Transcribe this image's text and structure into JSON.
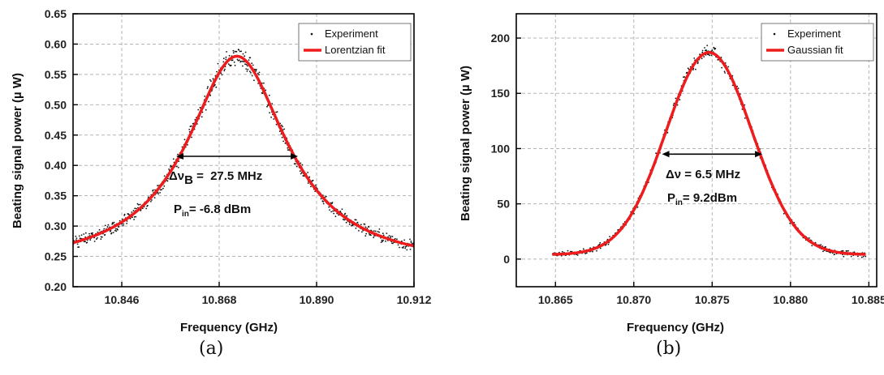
{
  "captions": {
    "a": "(a)",
    "b": "(b)"
  },
  "annotations": {
    "a_width": "27.5 MHz",
    "a_pin": "-6.8 dBm",
    "b_width": "6.5 MHz",
    "b_pin": "9.2dBm"
  },
  "chart_data": [
    {
      "type": "scatter",
      "panel": "a",
      "xlabel": "Frequency (GHz)",
      "ylabel": "Beating signal power (µ W)",
      "xlim": [
        10.835,
        10.912
      ],
      "ylim": [
        0.2,
        0.65
      ],
      "xticks": [
        10.846,
        10.868,
        10.89,
        10.912
      ],
      "xtick_labels": [
        "10.846",
        "10.868",
        "10.890",
        "10.912"
      ],
      "yticks": [
        0.2,
        0.25,
        0.3,
        0.35,
        0.4,
        0.45,
        0.5,
        0.55,
        0.6,
        0.65
      ],
      "ytick_labels": [
        "0.20",
        "0.25",
        "0.30",
        "0.35",
        "0.40",
        "0.45",
        "0.50",
        "0.55",
        "0.60",
        "0.65"
      ],
      "grid": true,
      "legend_position": "top-right",
      "fit_model": "lorentzian",
      "fit_params": {
        "center": 10.872,
        "fwhm": 0.0275,
        "baseline": 0.23,
        "amplitude": 0.35,
        "noise": 0.012
      },
      "series": [
        {
          "name": "Experiment",
          "kind": "points",
          "color": "#111111"
        },
        {
          "name": "Lorentzian fit",
          "kind": "line",
          "color": "#ee1c1c"
        }
      ],
      "width_arrow": {
        "x_from": 10.8583,
        "x_to": 10.8858,
        "y": 0.415
      },
      "curve": {
        "x": [
          10.835,
          10.84,
          10.845,
          10.85,
          10.855,
          10.86,
          10.862,
          10.864,
          10.866,
          10.868,
          10.87,
          10.872,
          10.874,
          10.876,
          10.878,
          10.88,
          10.882,
          10.884,
          10.886,
          10.89,
          10.895,
          10.9,
          10.905,
          10.91,
          10.912
        ],
        "y": [
          0.284,
          0.293,
          0.306,
          0.327,
          0.361,
          0.422,
          0.457,
          0.497,
          0.538,
          0.567,
          0.575,
          0.58,
          0.575,
          0.567,
          0.538,
          0.497,
          0.457,
          0.422,
          0.393,
          0.353,
          0.322,
          0.304,
          0.293,
          0.285,
          0.283
        ]
      }
    },
    {
      "type": "scatter",
      "panel": "b",
      "xlabel": "Frequency (GHz)",
      "ylabel": "Beating signal power (µ W)",
      "xlim": [
        10.8625,
        10.8855
      ],
      "ylim": [
        -25,
        222
      ],
      "xticks": [
        10.865,
        10.87,
        10.875,
        10.88,
        10.885
      ],
      "xtick_labels": [
        "10.865",
        "10.870",
        "10.875",
        "10.880",
        "10.885"
      ],
      "yticks": [
        0,
        50,
        100,
        150,
        200
      ],
      "ytick_labels": [
        "0",
        "50",
        "100",
        "150",
        "200"
      ],
      "grid": true,
      "legend_position": "top-right",
      "fit_model": "gaussian",
      "fit_params": {
        "center": 10.8748,
        "fwhm": 0.0065,
        "baseline": 4,
        "amplitude": 183,
        "noise": 6
      },
      "series": [
        {
          "name": "Experiment",
          "kind": "points",
          "color": "#111111"
        },
        {
          "name": "Gaussian fit",
          "kind": "line",
          "color": "#ee1c1c"
        }
      ],
      "width_arrow": {
        "x_from": 10.8718,
        "x_to": 10.8782,
        "y": 95
      },
      "curve": {
        "x": [
          10.8648,
          10.866,
          10.867,
          10.868,
          10.869,
          10.87,
          10.871,
          10.872,
          10.873,
          10.874,
          10.8748,
          10.8755,
          10.8765,
          10.8775,
          10.8785,
          10.8795,
          10.8805,
          10.8815,
          10.8825,
          10.8835,
          10.8848
        ],
        "y": [
          7,
          12,
          20,
          33,
          53,
          79,
          109,
          140,
          166,
          182,
          187,
          183,
          170,
          145,
          115,
          84,
          57,
          35,
          20,
          12,
          6
        ]
      }
    }
  ]
}
